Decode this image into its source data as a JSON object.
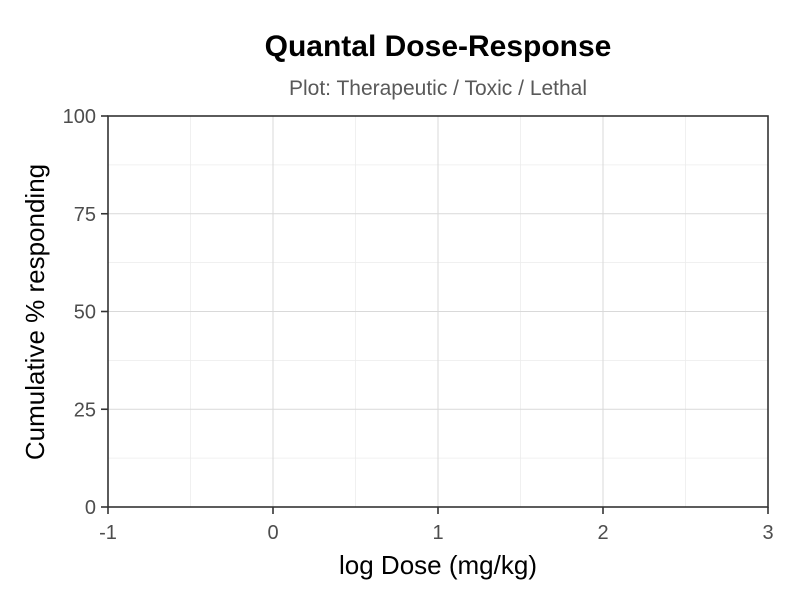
{
  "chart_data": {
    "type": "line",
    "title": "Quantal Dose-Response",
    "subtitle": "Plot: Therapeutic / Toxic / Lethal",
    "xlabel": "log Dose (mg/kg)",
    "ylabel": "Cumulative % responding",
    "xlim": [
      -1,
      3
    ],
    "ylim": [
      0,
      100
    ],
    "x_ticks": [
      -1,
      0,
      1,
      2,
      3
    ],
    "x_tick_labels": [
      "-1",
      "0",
      "1",
      "2",
      "3"
    ],
    "y_ticks": [
      0,
      25,
      50,
      75,
      100
    ],
    "y_tick_labels": [
      "0",
      "25",
      "50",
      "75",
      "100"
    ],
    "x_minor": [
      -0.5,
      0.5,
      1.5,
      2.5
    ],
    "y_minor": [
      12.5,
      37.5,
      62.5,
      87.5
    ],
    "grid": true,
    "series": []
  }
}
